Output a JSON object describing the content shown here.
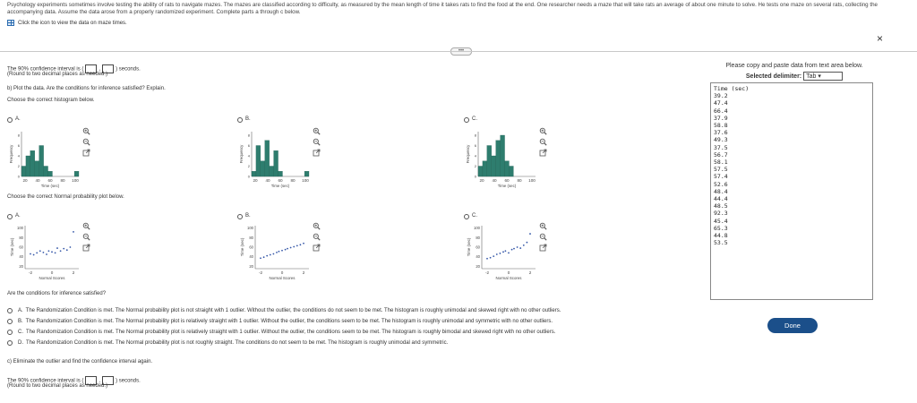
{
  "intro_text": "Psychology experiments sometimes involve testing the ability of rats to navigate mazes. The mazes are classified according to difficulty, as measured by the mean length of time it takes rats to find the food at the end. One researcher needs a maze that will take rats an average of about one minute to solve. He tests one maze on several rats, collecting the accompanying data. Assume the data arose from a properly randomized experiment. Complete parts a through c below.",
  "icon_prompt": "Click the icon to view the data on maze times.",
  "part_a": {
    "prefix": "The 90% confidence interval is (",
    "mid": ",",
    "suffix": ") seconds.",
    "note": "(Round to two decimal places as needed.)"
  },
  "part_b": {
    "question": "b) Plot the data. Are the conditions for inference satisfied? Explain.",
    "hist_prompt": "Choose the correct histogram below.",
    "npp_prompt": "Choose the correct Normal probability plot below."
  },
  "hist_options": [
    {
      "letter": "A.",
      "xlabel": "Time (sec)",
      "ylabel": "Frequency",
      "ticks": [
        "20",
        "40",
        "60",
        "80",
        "100"
      ],
      "yticks": [
        "8",
        "6",
        "4",
        "2",
        "0"
      ],
      "bars": [
        2,
        4,
        5,
        3,
        6,
        2,
        1,
        0,
        0,
        0,
        0,
        0,
        1
      ]
    },
    {
      "letter": "B.",
      "xlabel": "Time (sec)",
      "ylabel": "Frequency",
      "ticks": [
        "20",
        "40",
        "60",
        "80",
        "100"
      ],
      "yticks": [
        "8",
        "6",
        "4",
        "2",
        "0"
      ],
      "bars": [
        1,
        6,
        3,
        7,
        2,
        5,
        1,
        0,
        0,
        0,
        0,
        0,
        1
      ]
    },
    {
      "letter": "C.",
      "xlabel": "Time (sec)",
      "ylabel": "Frequency",
      "ticks": [
        "20",
        "40",
        "60",
        "80",
        "100"
      ],
      "yticks": [
        "8",
        "6",
        "4",
        "2",
        "0"
      ],
      "bars": [
        2,
        3,
        6,
        4,
        7,
        8,
        3,
        2,
        0,
        0,
        0,
        0,
        0
      ]
    }
  ],
  "npp_options": [
    {
      "letter": "A.",
      "xlabel": "Normal Scores",
      "ylabel": "Time (sec)",
      "xticks": [
        "-2",
        "0",
        "2"
      ],
      "yticks": [
        "100",
        "80",
        "60",
        "40",
        "20"
      ],
      "points": [
        [
          -2.0,
          46
        ],
        [
          -1.7,
          44
        ],
        [
          -1.4,
          48
        ],
        [
          -1.1,
          52
        ],
        [
          -0.8,
          49
        ],
        [
          -0.5,
          45
        ],
        [
          -0.3,
          52
        ],
        [
          0.0,
          50
        ],
        [
          0.3,
          48
        ],
        [
          0.5,
          58
        ],
        [
          0.8,
          52
        ],
        [
          1.1,
          57
        ],
        [
          1.4,
          54
        ],
        [
          1.7,
          60
        ],
        [
          2.0,
          92
        ]
      ]
    },
    {
      "letter": "B.",
      "xlabel": "Normal Scores",
      "ylabel": "Time (sec)",
      "xticks": [
        "-2",
        "0",
        "2"
      ],
      "yticks": [
        "100",
        "80",
        "60",
        "40",
        "20"
      ],
      "points": [
        [
          -2.0,
          37
        ],
        [
          -1.7,
          39
        ],
        [
          -1.4,
          42
        ],
        [
          -1.1,
          44
        ],
        [
          -0.8,
          46
        ],
        [
          -0.5,
          49
        ],
        [
          -0.3,
          51
        ],
        [
          0.0,
          53
        ],
        [
          0.3,
          55
        ],
        [
          0.5,
          57
        ],
        [
          0.8,
          59
        ],
        [
          1.1,
          61
        ],
        [
          1.4,
          63
        ],
        [
          1.7,
          65
        ],
        [
          2.0,
          68
        ]
      ]
    },
    {
      "letter": "C.",
      "xlabel": "Normal Scores",
      "ylabel": "Time (sec)",
      "xticks": [
        "-2",
        "0",
        "2"
      ],
      "yticks": [
        "100",
        "80",
        "60",
        "40",
        "20"
      ],
      "points": [
        [
          -2.0,
          36
        ],
        [
          -1.7,
          38
        ],
        [
          -1.4,
          41
        ],
        [
          -1.1,
          45
        ],
        [
          -0.8,
          47
        ],
        [
          -0.5,
          50
        ],
        [
          -0.3,
          52
        ],
        [
          0.0,
          48
        ],
        [
          0.3,
          55
        ],
        [
          0.5,
          57
        ],
        [
          0.8,
          60
        ],
        [
          1.1,
          58
        ],
        [
          1.4,
          64
        ],
        [
          1.7,
          70
        ],
        [
          2.0,
          88
        ]
      ]
    }
  ],
  "conditions_question": "Are the conditions for inference satisfied?",
  "conditions_options": [
    {
      "letter": "A.",
      "text": "The Randomization Condition is met. The Normal probability plot is not straight with 1 outlier. Without the outlier, the conditions do not seem to be met. The histogram is roughly unimodal and skewed right with no other outliers."
    },
    {
      "letter": "B.",
      "text": "The Randomization Condition is met. The Normal probability plot is relatively straight with 1 outlier. Without the outlier, the conditions seem to be met. The histogram is roughly unimodal and symmetric with no other outliers."
    },
    {
      "letter": "C.",
      "text": "The Randomization Condition is met. The Normal probability plot is relatively straight with 1 outlier. Without the outlier, the conditions seem to be met. The histogram is roughly bimodal and skewed right with no other outliers."
    },
    {
      "letter": "D.",
      "text": "The Randomization Condition is met. The Normal probability plot is not roughly straight. The conditions do not seem to be met. The histogram is roughly unimodal and symmetric."
    }
  ],
  "part_c": {
    "question": "c) Eliminate the outlier and find the confidence interval again.",
    "prefix": "The 90% confidence interval is (",
    "mid": ",",
    "suffix": ") seconds.",
    "note": "(Round to two decimal places as needed.)"
  },
  "panel": {
    "instruction": "Please copy and paste data from text area below.",
    "delimiter_label": "Selected delimiter:",
    "delimiter_value": "Tab",
    "data_text": "Time (sec)\n39.2\n47.4\n66.4\n37.9\n58.8\n37.6\n49.3\n37.5\n56.7\n58.1\n57.5\n57.4\n52.6\n48.4\n44.4\n48.5\n92.3\n45.4\n65.3\n44.8\n53.5",
    "done_label": "Done",
    "close_glyph": "×"
  },
  "glyphs": {
    "radio": "",
    "handle": "•••"
  },
  "colors": {
    "bar": "#2e7d6e",
    "bar_dark": "#1f5f52",
    "point": "#3557a8",
    "done_bg": "#1b4f8a"
  }
}
